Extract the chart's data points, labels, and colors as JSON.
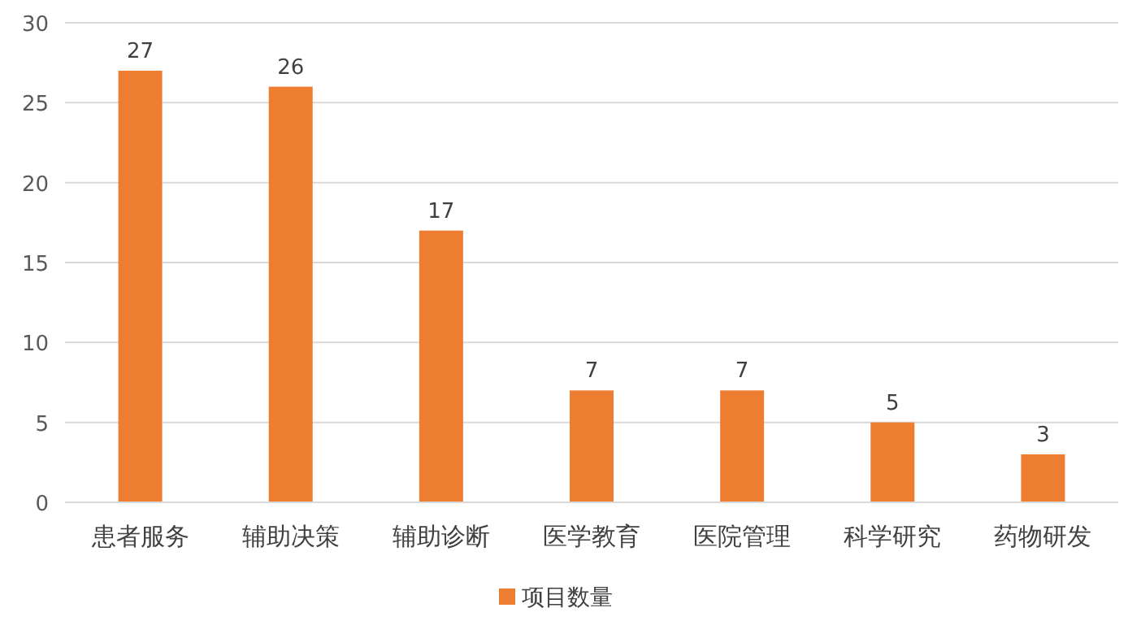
{
  "chart_data": {
    "type": "bar",
    "categories": [
      "患者服务",
      "辅助决策",
      "辅助诊断",
      "医学教育",
      "医院管理",
      "科学研究",
      "药物研发"
    ],
    "series": [
      {
        "name": "项目数量",
        "color": "#ed7d31",
        "values": [
          27,
          26,
          17,
          7,
          7,
          5,
          3
        ]
      }
    ],
    "ylim": [
      0,
      30
    ],
    "yticks": [
      0,
      5,
      10,
      15,
      20,
      25,
      30
    ],
    "grid": "y",
    "legend": "bottom",
    "data_labels": true
  }
}
